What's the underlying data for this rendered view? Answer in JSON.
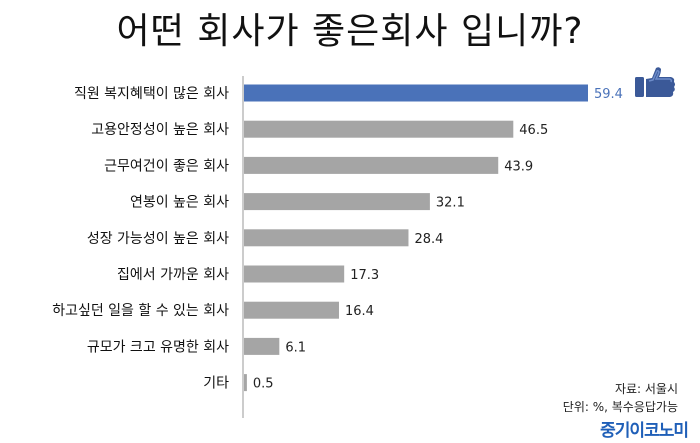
{
  "chart_data": {
    "type": "bar",
    "orientation": "horizontal",
    "title": "어떤 회사가 좋은회사 입니까?",
    "categories": [
      "직원 복지혜택이 많은 회사",
      "고용안정성이 높은 회사",
      "근무여건이 좋은 회사",
      "연봉이 높은 회사",
      "성장 가능성이 높은 회사",
      "집에서 가까운 회사",
      "하고싶던 일을 할 수 있는 회사",
      "규모가 크고 유명한 회사",
      "기타"
    ],
    "values": [
      59.4,
      46.5,
      43.9,
      32.1,
      28.4,
      17.3,
      16.4,
      6.1,
      0.5
    ],
    "value_labels": [
      "59.4",
      "46.5",
      "43.9",
      "32.1",
      "28.4",
      "17.3",
      "16.4",
      "6.1",
      "0.5"
    ],
    "xlim": [
      0,
      60
    ],
    "grid": false,
    "colors": {
      "highlight": "#4a72b9",
      "default": "#a5a5a5",
      "highlight_label": "#4a72b9",
      "axis": "#999999"
    },
    "icon": "thumbs-up-icon"
  },
  "notes": {
    "source": "자료: 서울시",
    "unit": "단위: %, 복수응답가능"
  },
  "brand": "중기이코노미"
}
